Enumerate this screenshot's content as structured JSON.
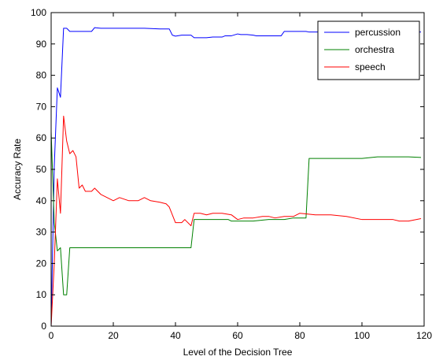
{
  "chart_data": {
    "type": "line",
    "title": "",
    "xlabel": "Level of the Decision Tree",
    "ylabel": "Accuracy Rate",
    "xlim": [
      0,
      120
    ],
    "ylim": [
      0,
      100
    ],
    "xticks": [
      "0",
      "20",
      "40",
      "60",
      "80",
      "100",
      "120"
    ],
    "yticks": [
      "0",
      "10",
      "20",
      "30",
      "40",
      "50",
      "60",
      "70",
      "80",
      "90",
      "100"
    ],
    "grid": false,
    "legend_position": "top-right",
    "series": [
      {
        "name": "percussion",
        "color": "#0000ff",
        "x": [
          0,
          1,
          2,
          3,
          4,
          5,
          6,
          7,
          10,
          13,
          14,
          16,
          20,
          25,
          30,
          35,
          38,
          39,
          40,
          42,
          45,
          46,
          48,
          50,
          52,
          55,
          56,
          58,
          60,
          61,
          63,
          65,
          66,
          68,
          70,
          74,
          75,
          80,
          82,
          83,
          86,
          90,
          95,
          100,
          105,
          110,
          115,
          119
        ],
        "y": [
          0,
          51,
          76,
          73,
          95,
          95,
          94,
          94,
          94,
          94,
          95.2,
          95,
          95,
          95,
          95,
          94.8,
          94.8,
          92.8,
          92.5,
          92.8,
          92.8,
          92,
          92,
          92,
          92.2,
          92.2,
          92.6,
          92.6,
          93.2,
          93,
          93,
          92.8,
          92.6,
          92.6,
          92.6,
          92.6,
          94,
          94,
          94,
          93.8,
          93.8,
          93.8,
          93.8,
          93.8,
          93.8,
          93.8,
          93.8,
          93.8
        ]
      },
      {
        "name": "orchestra",
        "color": "#008000",
        "x": [
          0,
          1,
          2,
          3,
          4,
          5,
          6,
          10,
          20,
          30,
          40,
          45,
          46,
          50,
          55,
          57,
          58,
          60,
          65,
          70,
          75,
          78,
          80,
          82,
          83,
          90,
          100,
          105,
          110,
          115,
          119
        ],
        "y": [
          62,
          33,
          24,
          25,
          10,
          10,
          25,
          25,
          25,
          25,
          25,
          25,
          34,
          34,
          34,
          34,
          33.5,
          33.5,
          33.5,
          34,
          34,
          34.5,
          34.5,
          34.5,
          53.5,
          53.5,
          53.5,
          54,
          54,
          54,
          53.8
        ]
      },
      {
        "name": "speech",
        "color": "#ff0000",
        "x": [
          0,
          1,
          2,
          3,
          4,
          5,
          6,
          7,
          8,
          9,
          10,
          11,
          12,
          13,
          14,
          16,
          18,
          20,
          22,
          25,
          28,
          30,
          32,
          35,
          37,
          38,
          40,
          42,
          43,
          45,
          46,
          48,
          50,
          52,
          55,
          58,
          60,
          62,
          65,
          68,
          70,
          72,
          75,
          78,
          80,
          82,
          85,
          90,
          95,
          100,
          105,
          110,
          112,
          115,
          119
        ],
        "y": [
          0,
          20,
          47,
          36,
          67,
          59,
          55,
          56,
          54,
          44,
          45,
          43,
          43,
          43,
          44,
          42,
          41,
          40,
          41,
          40,
          40,
          41,
          40,
          39.5,
          39,
          38,
          33,
          33,
          34,
          32,
          36,
          36,
          35.5,
          36,
          36,
          35.5,
          34,
          34.5,
          34.5,
          35,
          35,
          34.5,
          35,
          35,
          36,
          35.8,
          35.5,
          35.5,
          35,
          34,
          34,
          34,
          33.5,
          33.5,
          34.3
        ]
      }
    ]
  }
}
